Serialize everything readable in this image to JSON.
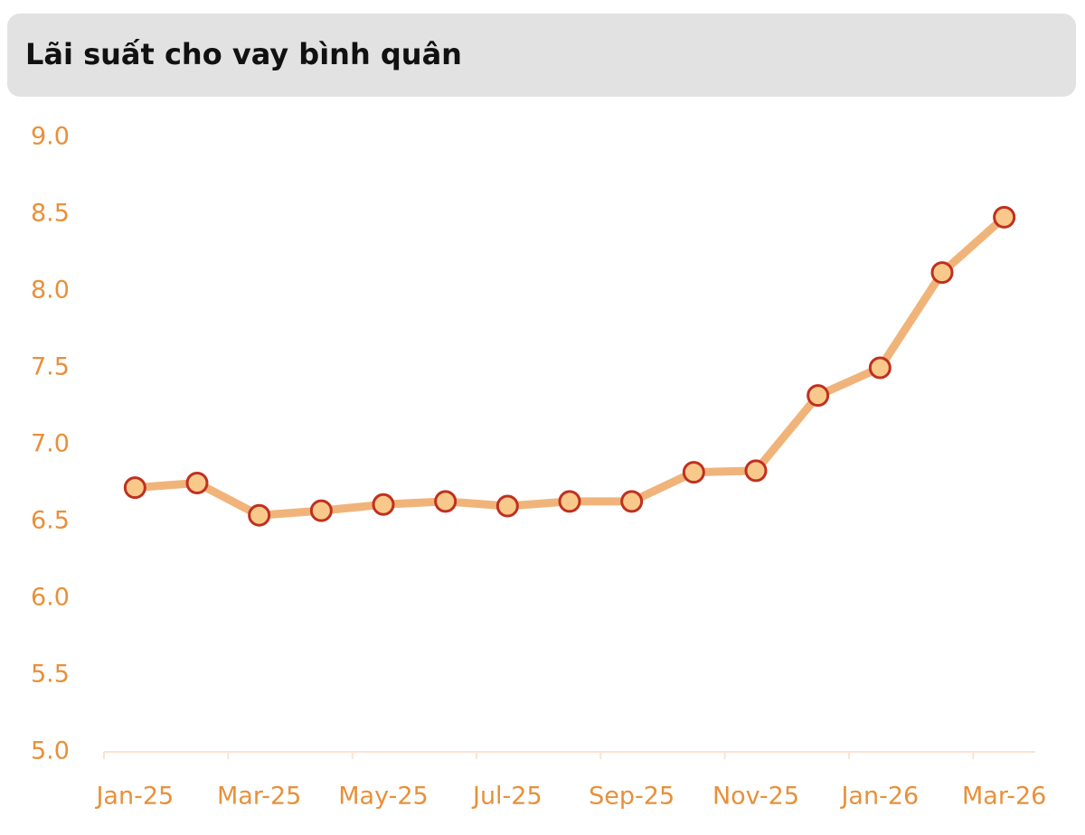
{
  "chart_data": {
    "type": "line",
    "title": "Lãi suất cho vay bình quân",
    "categories": [
      "Jan-25",
      null,
      "Mar-25",
      null,
      "May-25",
      null,
      "Jul-25",
      null,
      "Sep-25",
      null,
      "Nov-25",
      null,
      "Jan-26",
      null,
      "Mar-26"
    ],
    "series": [
      {
        "name": null,
        "color": "#f0b47a",
        "marker_fill": "#f8c98a",
        "marker_stroke": "#c0301f",
        "values": [
          6.72,
          6.75,
          6.54,
          6.57,
          6.61,
          6.63,
          6.6,
          6.63,
          6.63,
          6.82,
          6.83,
          7.32,
          7.5,
          8.12,
          8.48
        ]
      }
    ],
    "ylim": [
      5,
      9
    ],
    "yticks": [
      {
        "value": 5,
        "label": "5.0"
      },
      {
        "value": 5.5,
        "label": "5.5"
      },
      {
        "value": 6,
        "label": "6.0"
      },
      {
        "value": 6.5,
        "label": "6.5"
      },
      {
        "value": 7,
        "label": "7.0"
      },
      {
        "value": 7.5,
        "label": "7.5"
      },
      {
        "value": 8,
        "label": "8.0"
      },
      {
        "value": 8.5,
        "label": "8.5"
      },
      {
        "value": 9,
        "label": "9.0"
      }
    ],
    "label_color": "#e8903a",
    "grid": false
  }
}
